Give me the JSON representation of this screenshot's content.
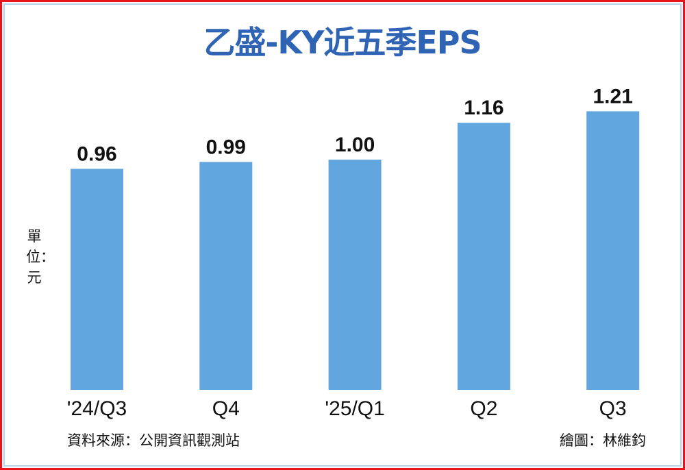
{
  "chart_data": {
    "type": "bar",
    "title": "乙盛-KY近五季EPS",
    "categories": [
      "'24/Q3",
      "Q4",
      "'25/Q1",
      "Q2",
      "Q3"
    ],
    "values": [
      0.96,
      0.99,
      1.0,
      1.16,
      1.21
    ],
    "data_labels": [
      "0.96",
      "0.99",
      "1.00",
      "1.16",
      "1.21"
    ],
    "ylabel": "單位：元",
    "ylim": [
      0,
      1.21
    ],
    "grid": false,
    "bar_color": "#62a6e0",
    "title_color": "#2f63b4"
  },
  "footer": {
    "source": "資料來源：公開資訊觀測站",
    "credit": "繪圖：林維鈞"
  }
}
